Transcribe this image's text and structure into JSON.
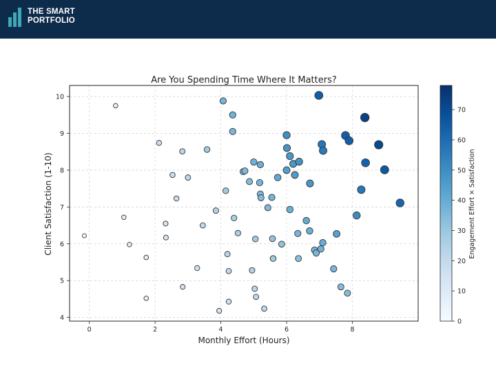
{
  "header": {
    "brand_line1": "THE SMART",
    "brand_line2": "PORTFOLIO",
    "logo_color": "#3fa8b6"
  },
  "chart_data": {
    "type": "scatter",
    "title": "Are You Spending Time Where It Matters?",
    "xlabel": "Monthly Effort (Hours)",
    "ylabel": "Client Satisfaction (1-10)",
    "colorbar_label": "Engagement Effort × Satisfaction",
    "xlim": [
      -0.6,
      10.0
    ],
    "ylim": [
      3.9,
      10.3
    ],
    "xticks": [
      0,
      2,
      4,
      6,
      8
    ],
    "yticks": [
      4,
      5,
      6,
      7,
      8,
      9,
      10
    ],
    "colorbar_range": [
      0,
      78
    ],
    "colorbar_ticks": [
      0,
      10,
      20,
      30,
      40,
      50,
      60,
      70
    ],
    "grid": true,
    "points": [
      {
        "x": -0.15,
        "y": 6.22
      },
      {
        "x": 0.8,
        "y": 9.75
      },
      {
        "x": 1.05,
        "y": 6.72
      },
      {
        "x": 1.22,
        "y": 5.98
      },
      {
        "x": 1.73,
        "y": 5.63
      },
      {
        "x": 1.73,
        "y": 4.52
      },
      {
        "x": 2.12,
        "y": 8.74
      },
      {
        "x": 2.32,
        "y": 6.55
      },
      {
        "x": 2.33,
        "y": 6.17
      },
      {
        "x": 2.53,
        "y": 7.87
      },
      {
        "x": 2.65,
        "y": 7.23
      },
      {
        "x": 2.83,
        "y": 8.51
      },
      {
        "x": 2.84,
        "y": 4.83
      },
      {
        "x": 3.0,
        "y": 7.8
      },
      {
        "x": 3.28,
        "y": 5.34
      },
      {
        "x": 3.45,
        "y": 6.5
      },
      {
        "x": 3.58,
        "y": 8.56
      },
      {
        "x": 3.85,
        "y": 6.9
      },
      {
        "x": 3.95,
        "y": 4.18
      },
      {
        "x": 4.07,
        "y": 9.88
      },
      {
        "x": 4.15,
        "y": 7.44
      },
      {
        "x": 4.2,
        "y": 5.72
      },
      {
        "x": 4.24,
        "y": 5.26
      },
      {
        "x": 4.24,
        "y": 4.43
      },
      {
        "x": 4.36,
        "y": 9.5
      },
      {
        "x": 4.36,
        "y": 9.05
      },
      {
        "x": 4.4,
        "y": 6.7
      },
      {
        "x": 4.52,
        "y": 6.29
      },
      {
        "x": 4.68,
        "y": 7.96
      },
      {
        "x": 4.73,
        "y": 7.98
      },
      {
        "x": 4.87,
        "y": 7.69
      },
      {
        "x": 4.95,
        "y": 5.28
      },
      {
        "x": 5.0,
        "y": 8.22
      },
      {
        "x": 5.03,
        "y": 4.78
      },
      {
        "x": 5.05,
        "y": 6.13
      },
      {
        "x": 5.07,
        "y": 4.56
      },
      {
        "x": 5.18,
        "y": 7.66
      },
      {
        "x": 5.2,
        "y": 8.15
      },
      {
        "x": 5.2,
        "y": 7.35
      },
      {
        "x": 5.22,
        "y": 7.25
      },
      {
        "x": 5.32,
        "y": 4.24
      },
      {
        "x": 5.43,
        "y": 6.98
      },
      {
        "x": 5.55,
        "y": 7.26
      },
      {
        "x": 5.57,
        "y": 6.14
      },
      {
        "x": 5.59,
        "y": 5.6
      },
      {
        "x": 5.73,
        "y": 7.8
      },
      {
        "x": 5.85,
        "y": 5.99
      },
      {
        "x": 6.0,
        "y": 8.95
      },
      {
        "x": 6.01,
        "y": 8.6
      },
      {
        "x": 6.0,
        "y": 8.0
      },
      {
        "x": 6.1,
        "y": 8.38
      },
      {
        "x": 6.1,
        "y": 6.93
      },
      {
        "x": 6.2,
        "y": 8.17
      },
      {
        "x": 6.25,
        "y": 7.87
      },
      {
        "x": 6.34,
        "y": 6.28
      },
      {
        "x": 6.36,
        "y": 5.6
      },
      {
        "x": 6.38,
        "y": 8.23
      },
      {
        "x": 6.6,
        "y": 6.63
      },
      {
        "x": 6.7,
        "y": 6.35
      },
      {
        "x": 6.71,
        "y": 7.64
      },
      {
        "x": 6.85,
        "y": 5.83
      },
      {
        "x": 6.9,
        "y": 5.75
      },
      {
        "x": 6.98,
        "y": 10.03
      },
      {
        "x": 7.04,
        "y": 5.86
      },
      {
        "x": 7.07,
        "y": 8.7
      },
      {
        "x": 7.1,
        "y": 6.03
      },
      {
        "x": 7.11,
        "y": 8.53
      },
      {
        "x": 7.43,
        "y": 5.32
      },
      {
        "x": 7.52,
        "y": 6.27
      },
      {
        "x": 7.65,
        "y": 4.83
      },
      {
        "x": 7.79,
        "y": 8.94
      },
      {
        "x": 7.85,
        "y": 4.66
      },
      {
        "x": 7.9,
        "y": 8.8
      },
      {
        "x": 8.13,
        "y": 6.77
      },
      {
        "x": 8.27,
        "y": 7.47
      },
      {
        "x": 8.38,
        "y": 9.43
      },
      {
        "x": 8.4,
        "y": 8.2
      },
      {
        "x": 8.8,
        "y": 8.69
      },
      {
        "x": 8.98,
        "y": 8.01
      },
      {
        "x": 9.45,
        "y": 7.11
      }
    ]
  }
}
